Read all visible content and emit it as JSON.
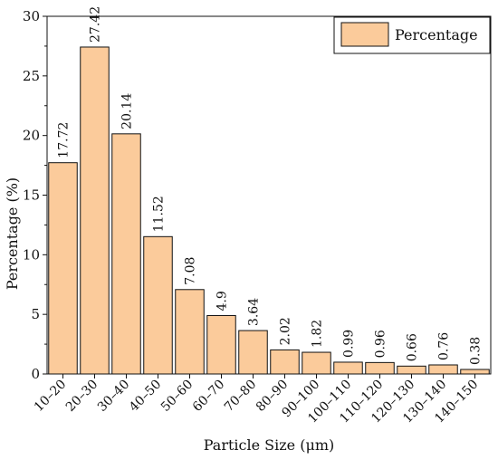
{
  "chart_data": {
    "type": "bar",
    "categories": [
      "10–20",
      "20–30",
      "30–40",
      "40–50",
      "50–60",
      "60–70",
      "70–80",
      "80–90",
      "90–100",
      "100–110",
      "110–120",
      "120–130",
      "130–140",
      "140–150"
    ],
    "series": [
      {
        "name": "Percentage",
        "values": [
          17.72,
          27.42,
          20.14,
          11.52,
          7.08,
          4.9,
          3.64,
          2.02,
          1.82,
          0.99,
          0.96,
          0.66,
          0.76,
          0.38
        ]
      }
    ],
    "data_labels": [
      "17.72",
      "27.42",
      "20.14",
      "11.52",
      "7.08",
      "4.9",
      "3.64",
      "2.02",
      "1.82",
      "0.99",
      "0.96",
      "0.66",
      "0.76",
      "0.38"
    ],
    "yticks": [
      0,
      5,
      10,
      15,
      20,
      25,
      30
    ],
    "ytick_labels": [
      "0",
      "5",
      "10",
      "15",
      "20",
      "25",
      "30"
    ],
    "ylim": [
      0,
      30
    ],
    "xlabel": "Particle Size (μm)",
    "ylabel": "Percentage (%)",
    "legend": {
      "position": "top-right",
      "label": "Percentage"
    },
    "grid": false,
    "bar_color": "#FBCB9B",
    "edge_color": "#111111"
  }
}
